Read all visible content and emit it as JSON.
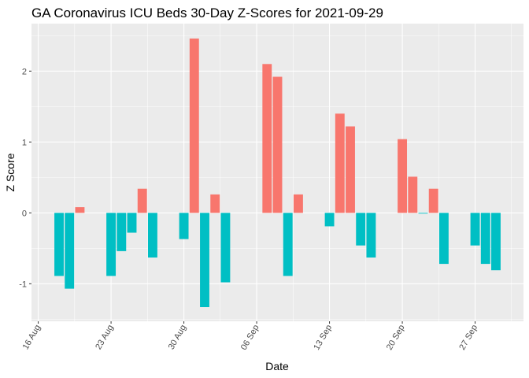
{
  "chart_data": {
    "type": "bar",
    "title": "GA Coronavirus ICU Beds 30-Day Z-Scores for 2021-09-29",
    "xlabel": "Date",
    "ylabel": "Z Score",
    "xlim": [
      "2021-08-15",
      "2021-10-01"
    ],
    "ylim": [
      -1.53,
      2.67
    ],
    "grid": true,
    "legend": "none",
    "x_ticks": [
      {
        "date": "2021-08-16",
        "label": "16 Aug"
      },
      {
        "date": "2021-08-23",
        "label": "23 Aug"
      },
      {
        "date": "2021-08-30",
        "label": "30 Aug"
      },
      {
        "date": "2021-09-06",
        "label": "06 Sep"
      },
      {
        "date": "2021-09-13",
        "label": "13 Sep"
      },
      {
        "date": "2021-09-20",
        "label": "20 Sep"
      },
      {
        "date": "2021-09-27",
        "label": "27 Sep"
      }
    ],
    "y_ticks": [
      -1,
      0,
      1,
      2
    ],
    "colors": {
      "positive": "#F8766D",
      "negative": "#00BFC4",
      "panel": "#EBEBEB",
      "grid": "#FFFFFF"
    },
    "points": [
      {
        "date": "2021-08-18",
        "value": -0.89
      },
      {
        "date": "2021-08-19",
        "value": -1.07
      },
      {
        "date": "2021-08-20",
        "value": 0.08
      },
      {
        "date": "2021-08-23",
        "value": -0.89
      },
      {
        "date": "2021-08-24",
        "value": -0.54
      },
      {
        "date": "2021-08-25",
        "value": -0.28
      },
      {
        "date": "2021-08-26",
        "value": 0.34
      },
      {
        "date": "2021-08-27",
        "value": -0.63
      },
      {
        "date": "2021-08-30",
        "value": -0.37
      },
      {
        "date": "2021-08-31",
        "value": 2.46
      },
      {
        "date": "2021-09-01",
        "value": -1.33
      },
      {
        "date": "2021-09-02",
        "value": 0.26
      },
      {
        "date": "2021-09-03",
        "value": -0.98
      },
      {
        "date": "2021-09-07",
        "value": 2.1
      },
      {
        "date": "2021-09-08",
        "value": 1.92
      },
      {
        "date": "2021-09-09",
        "value": -0.89
      },
      {
        "date": "2021-09-10",
        "value": 0.26
      },
      {
        "date": "2021-09-13",
        "value": -0.19
      },
      {
        "date": "2021-09-14",
        "value": 1.4
      },
      {
        "date": "2021-09-15",
        "value": 1.22
      },
      {
        "date": "2021-09-16",
        "value": -0.46
      },
      {
        "date": "2021-09-17",
        "value": -0.63
      },
      {
        "date": "2021-09-20",
        "value": 1.04
      },
      {
        "date": "2021-09-21",
        "value": 0.51
      },
      {
        "date": "2021-09-22",
        "value": -0.01
      },
      {
        "date": "2021-09-23",
        "value": 0.34
      },
      {
        "date": "2021-09-24",
        "value": -0.72
      },
      {
        "date": "2021-09-27",
        "value": -0.46
      },
      {
        "date": "2021-09-28",
        "value": -0.72
      },
      {
        "date": "2021-09-29",
        "value": -0.81
      }
    ]
  }
}
